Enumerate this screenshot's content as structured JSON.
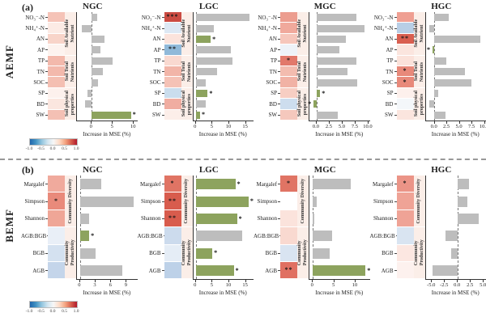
{
  "figure": {
    "panel_a_label": "(a)",
    "panel_b_label": "(b)",
    "row_a_label": "AEMF",
    "row_b_label": "BEMF",
    "x_axis_title": "Increase in MSE (%)",
    "colorbar_ticks": [
      "-1.0",
      "-0.5",
      "0.0",
      "0.5",
      "1.0"
    ],
    "colors": {
      "bar_gray": "#bdbdbd",
      "bar_green": "#8da35e",
      "group_strip_bg": "#fbeee8",
      "heat_red_max": "#b2182b",
      "heat_blue_max": "#2166ac"
    }
  },
  "chart_data": [
    {
      "type": "bar",
      "row": "AEMF",
      "site": "NGC",
      "xlabel": "Increase in MSE (%)",
      "xticks": [
        0,
        5,
        10
      ],
      "xtick_labels": [
        "0",
        "5",
        "10"
      ],
      "xlim": [
        -3.5,
        11.0
      ],
      "groups": [
        {
          "label": "Soil Available Nutrient",
          "span": 4
        },
        {
          "label": "Soil Total Nutrients",
          "span": 3
        },
        {
          "label": "Soil physical properties",
          "span": 3
        }
      ],
      "rows": [
        {
          "label": "NO₃⁻-N",
          "heat_color": "#f5c3b7",
          "heat_stars": "",
          "value": 1.4,
          "bar_color": "gray",
          "bar_stars": ""
        },
        {
          "label": "NH₄⁺-N",
          "heat_color": "#fcebe5",
          "heat_stars": "",
          "value": -2.3,
          "bar_color": "gray",
          "bar_stars": ""
        },
        {
          "label": "AN",
          "heat_color": "#f8d4c9",
          "heat_stars": "",
          "value": 3.2,
          "bar_color": "gray",
          "bar_stars": ""
        },
        {
          "label": "AP",
          "heat_color": "#fdf3ef",
          "heat_stars": "",
          "value": 2.1,
          "bar_color": "gray",
          "bar_stars": ""
        },
        {
          "label": "TP",
          "heat_color": "#f3b9ac",
          "heat_stars": "",
          "value": 5.0,
          "bar_color": "gray",
          "bar_stars": ""
        },
        {
          "label": "TN",
          "heat_color": "#f3b9ac",
          "heat_stars": "",
          "value": 2.8,
          "bar_color": "gray",
          "bar_stars": ""
        },
        {
          "label": "SOC",
          "heat_color": "#f4bfb2",
          "heat_stars": "",
          "value": 1.5,
          "bar_color": "gray",
          "bar_stars": ""
        },
        {
          "label": "SP",
          "heat_color": "#fdf1ed",
          "heat_stars": "",
          "value": -1.0,
          "bar_color": "gray",
          "bar_stars": ""
        },
        {
          "label": "BD",
          "heat_color": "#fbe6df",
          "heat_stars": "",
          "value": -1.6,
          "bar_color": "gray",
          "bar_stars": ""
        },
        {
          "label": "SW",
          "heat_color": "#f4c0b4",
          "heat_stars": "",
          "value": 9.5,
          "bar_color": "green",
          "bar_stars": "*"
        }
      ]
    },
    {
      "type": "bar",
      "row": "AEMF",
      "site": "LGC",
      "xlabel": "Increase in MSE (%)",
      "xticks": [
        0,
        5,
        10,
        15
      ],
      "xtick_labels": [
        "0",
        "5",
        "10",
        "15"
      ],
      "xlim": [
        -0.8,
        17.5
      ],
      "groups": [
        {
          "label": "Soil Available Nutrient",
          "span": 4
        },
        {
          "label": "Soil Total Nutrients",
          "span": 3
        },
        {
          "label": "Soil physical properties",
          "span": 3
        }
      ],
      "rows": [
        {
          "label": "NO₃⁻-N",
          "heat_color": "#cb4b42",
          "heat_stars": "***",
          "value": 16.3,
          "bar_color": "gray",
          "bar_stars": ""
        },
        {
          "label": "NH₄⁺-N",
          "heat_color": "#dde8f4",
          "heat_stars": "",
          "value": 5.4,
          "bar_color": "gray",
          "bar_stars": ""
        },
        {
          "label": "AN",
          "heat_color": "#fbe3dc",
          "heat_stars": "",
          "value": 4.5,
          "bar_color": "green",
          "bar_stars": "*"
        },
        {
          "label": "AP",
          "heat_color": "#90b9d9",
          "heat_stars": "**",
          "value": 10.7,
          "bar_color": "gray",
          "bar_stars": ""
        },
        {
          "label": "TP",
          "heat_color": "#f9d9d0",
          "heat_stars": "",
          "value": 11.0,
          "bar_color": "gray",
          "bar_stars": ""
        },
        {
          "label": "TN",
          "heat_color": "#f2b5a8",
          "heat_stars": "",
          "value": 6.4,
          "bar_color": "gray",
          "bar_stars": ""
        },
        {
          "label": "SOC",
          "heat_color": "#f5c2b6",
          "heat_stars": "",
          "value": 3.0,
          "bar_color": "gray",
          "bar_stars": ""
        },
        {
          "label": "SP",
          "heat_color": "#cadded",
          "heat_stars": "",
          "value": 3.6,
          "bar_color": "green",
          "bar_stars": "*"
        },
        {
          "label": "BD",
          "heat_color": "#f0ada1",
          "heat_stars": "",
          "value": 3.0,
          "bar_color": "gray",
          "bar_stars": ""
        },
        {
          "label": "SW",
          "heat_color": "#fceee9",
          "heat_stars": "",
          "value": 1.3,
          "bar_color": "green",
          "bar_stars": "*"
        }
      ]
    },
    {
      "type": "bar",
      "row": "AEMF",
      "site": "MGC",
      "xlabel": "Increase in MSE (%)",
      "xticks": [
        0,
        2.5,
        5,
        7.5,
        10
      ],
      "xtick_labels": [
        "0.0",
        "2.5",
        "5.0",
        "7.5",
        "10.0"
      ],
      "xlim": [
        -1.4,
        10.4
      ],
      "groups": [
        {
          "label": "Soil Available Nutrient",
          "span": 4
        },
        {
          "label": "Soil Total Nutrients",
          "span": 3
        },
        {
          "label": "Soil physical properties",
          "span": 3
        }
      ],
      "rows": [
        {
          "label": "NO₃⁻-N",
          "heat_color": "#ec9d8f",
          "heat_stars": "",
          "value": 7.8,
          "bar_color": "gray",
          "bar_stars": ""
        },
        {
          "label": "NH₄⁺-N",
          "heat_color": "#f0a99c",
          "heat_stars": "",
          "value": 9.4,
          "bar_color": "gray",
          "bar_stars": ""
        },
        {
          "label": "AN",
          "heat_color": "#f6c6bb",
          "heat_stars": "",
          "value": 5.7,
          "bar_color": "gray",
          "bar_stars": ""
        },
        {
          "label": "AP",
          "heat_color": "#eef2f8",
          "heat_stars": "",
          "value": 4.5,
          "bar_color": "gray",
          "bar_stars": ""
        },
        {
          "label": "TP",
          "heat_color": "#e2796b",
          "heat_stars": "*",
          "value": 7.8,
          "bar_color": "gray",
          "bar_stars": ""
        },
        {
          "label": "TN",
          "heat_color": "#f3bcaf",
          "heat_stars": "",
          "value": 6.0,
          "bar_color": "gray",
          "bar_stars": ""
        },
        {
          "label": "SOC",
          "heat_color": "#f1b2a5",
          "heat_stars": "",
          "value": 8.0,
          "bar_color": "gray",
          "bar_stars": ""
        },
        {
          "label": "SP",
          "heat_color": "#f7cec3",
          "heat_stars": "",
          "value": 0.7,
          "bar_color": "green",
          "bar_stars": "*"
        },
        {
          "label": "BD",
          "heat_color": "#cdddee",
          "heat_stars": "",
          "value": -0.6,
          "bar_color": "green",
          "bar_stars": "*"
        },
        {
          "label": "SW",
          "heat_color": "#f5c8bd",
          "heat_stars": "",
          "value": 4.2,
          "bar_color": "gray",
          "bar_stars": ""
        }
      ]
    },
    {
      "type": "bar",
      "row": "AEMF",
      "site": "HGC",
      "xlabel": "Increase in MSE (%)",
      "xticks": [
        0,
        2.5,
        5,
        7.5,
        10
      ],
      "xtick_labels": [
        "0.0",
        "2.5",
        "5.0",
        "7.5",
        "10.0"
      ],
      "xlim": [
        -1.8,
        10.4
      ],
      "groups": [
        {
          "label": "Soil Available Nutrient",
          "span": 4
        },
        {
          "label": "Soil Total Nutrients",
          "span": 3
        },
        {
          "label": "Soil physical properties",
          "span": 3
        }
      ],
      "rows": [
        {
          "label": "NO₃⁻-N",
          "heat_color": "#ef9f92",
          "heat_stars": "",
          "value": 2.8,
          "bar_color": "gray",
          "bar_stars": ""
        },
        {
          "label": "NH₄⁺-N",
          "heat_color": "#b8cee5",
          "heat_stars": "",
          "value": -1.0,
          "bar_color": "gray",
          "bar_stars": ""
        },
        {
          "label": "AN",
          "heat_color": "#d95f50",
          "heat_stars": "**",
          "value": 9.2,
          "bar_color": "gray",
          "bar_stars": ""
        },
        {
          "label": "AP",
          "heat_color": "#fbe5de",
          "heat_stars": "",
          "value": -0.4,
          "bar_color": "green",
          "bar_stars": "*"
        },
        {
          "label": "TP",
          "heat_color": "#fbe2da",
          "heat_stars": "",
          "value": 2.3,
          "bar_color": "gray",
          "bar_stars": ""
        },
        {
          "label": "TN",
          "heat_color": "#e8897a",
          "heat_stars": "*",
          "value": 6.2,
          "bar_color": "gray",
          "bar_stars": ""
        },
        {
          "label": "SOC",
          "heat_color": "#e8897a",
          "heat_stars": "*",
          "value": 7.5,
          "bar_color": "gray",
          "bar_stars": ""
        },
        {
          "label": "SP",
          "heat_color": "#fdf0ec",
          "heat_stars": "",
          "value": 0.7,
          "bar_color": "gray",
          "bar_stars": ""
        },
        {
          "label": "BD",
          "heat_color": "#f4f7fa",
          "heat_stars": "",
          "value": -1.0,
          "bar_color": "gray",
          "bar_stars": ""
        },
        {
          "label": "SW",
          "heat_color": "#fbe5de",
          "heat_stars": "",
          "value": 2.2,
          "bar_color": "gray",
          "bar_stars": ""
        }
      ]
    },
    {
      "type": "bar",
      "row": "BEMF",
      "site": "NGC",
      "xlabel": "Increase in MSE (%)",
      "xticks": [
        0,
        3,
        6,
        9
      ],
      "xtick_labels": [
        "0",
        "3",
        "6",
        "9"
      ],
      "xlim": [
        -0.6,
        11.2
      ],
      "groups": [
        {
          "label": "Community Diversity",
          "span": 3
        },
        {
          "label": "Community Productivity",
          "span": 3
        }
      ],
      "rows": [
        {
          "label": "Margalef",
          "heat_color": "#f0aa9d",
          "heat_stars": "",
          "value": 4.2,
          "bar_color": "gray",
          "bar_stars": ""
        },
        {
          "label": "Simpson",
          "heat_color": "#e98a7b",
          "heat_stars": "*",
          "value": 10.5,
          "bar_color": "gray",
          "bar_stars": ""
        },
        {
          "label": "Shannon",
          "heat_color": "#efa697",
          "heat_stars": "",
          "value": 1.8,
          "bar_color": "gray",
          "bar_stars": ""
        },
        {
          "label": "AGB:BGB",
          "heat_color": "#e9eff7",
          "heat_stars": "",
          "value": 1.8,
          "bar_color": "green",
          "bar_stars": "*"
        },
        {
          "label": "BGB",
          "heat_color": "#d4e1f0",
          "heat_stars": "",
          "value": 3.0,
          "bar_color": "gray",
          "bar_stars": ""
        },
        {
          "label": "AGB",
          "heat_color": "#c4d5ea",
          "heat_stars": "",
          "value": 8.2,
          "bar_color": "gray",
          "bar_stars": ""
        }
      ]
    },
    {
      "type": "bar",
      "row": "BEMF",
      "site": "LGC",
      "xlabel": "Increase in MSE (%)",
      "xticks": [
        0,
        5,
        10,
        15
      ],
      "xtick_labels": [
        "0",
        "5",
        "10",
        "15"
      ],
      "xlim": [
        -0.8,
        17.5
      ],
      "groups": [
        {
          "label": "Community Diversity",
          "span": 3
        },
        {
          "label": "Community Productivity",
          "span": 3
        }
      ],
      "rows": [
        {
          "label": "Margalef",
          "heat_color": "#e07464",
          "heat_stars": "*",
          "value": 12.0,
          "bar_color": "green",
          "bar_stars": "*"
        },
        {
          "label": "Simpson",
          "heat_color": "#d85c4d",
          "heat_stars": "**",
          "value": 16.0,
          "bar_color": "green",
          "bar_stars": "*"
        },
        {
          "label": "Shannon",
          "heat_color": "#d85c4d",
          "heat_stars": "**",
          "value": 12.5,
          "bar_color": "green",
          "bar_stars": "*"
        },
        {
          "label": "AGB:BGB",
          "heat_color": "#ccdbed",
          "heat_stars": "",
          "value": 14.0,
          "bar_color": "gray",
          "bar_stars": ""
        },
        {
          "label": "BGB",
          "heat_color": "#e5edf6",
          "heat_stars": "",
          "value": 5.0,
          "bar_color": "green",
          "bar_stars": "*"
        },
        {
          "label": "AGB",
          "heat_color": "#bdd1e8",
          "heat_stars": "",
          "value": 11.5,
          "bar_color": "green",
          "bar_stars": "*"
        }
      ]
    },
    {
      "type": "bar",
      "row": "BEMF",
      "site": "MGC",
      "xlabel": "Increase in MSE (%)",
      "xticks": [
        0,
        5,
        10
      ],
      "xtick_labels": [
        "0",
        "5",
        "10"
      ],
      "xlim": [
        -0.8,
        13.5
      ],
      "groups": [
        {
          "label": "Community Diversity",
          "span": 3
        },
        {
          "label": "Community Productivity",
          "span": 3
        }
      ],
      "rows": [
        {
          "label": "Margalef",
          "heat_color": "#e07464",
          "heat_stars": "*",
          "value": 9.0,
          "bar_color": "gray",
          "bar_stars": ""
        },
        {
          "label": "Simpson",
          "heat_color": "#ffffff",
          "heat_stars": "",
          "value": 1.0,
          "bar_color": "gray",
          "bar_stars": ""
        },
        {
          "label": "Shannon",
          "heat_color": "#fbe3dc",
          "heat_stars": "",
          "value": 0.3,
          "bar_color": "gray",
          "bar_stars": ""
        },
        {
          "label": "AGB:BGB",
          "heat_color": "#f9d9d0",
          "heat_stars": "",
          "value": 4.5,
          "bar_color": "gray",
          "bar_stars": ""
        },
        {
          "label": "BGB",
          "heat_color": "#d9e4f1",
          "heat_stars": "",
          "value": 4.0,
          "bar_color": "gray",
          "bar_stars": ""
        },
        {
          "label": "AGB",
          "heat_color": "#e07062",
          "heat_stars": "**",
          "value": 12.5,
          "bar_color": "green",
          "bar_stars": "*"
        }
      ]
    },
    {
      "type": "bar",
      "row": "BEMF",
      "site": "HGC",
      "xlabel": "Increase in MSE (%)",
      "xticks": [
        -5,
        -2.5,
        0,
        2.5,
        5
      ],
      "xtick_labels": [
        "-5.0",
        "-2.5",
        "0.0",
        "2.5",
        "5.0"
      ],
      "xlim": [
        -6.2,
        5.6
      ],
      "groups": [
        {
          "label": "Community Diversity",
          "span": 3
        },
        {
          "label": "Community Productivity",
          "span": 3
        }
      ],
      "rows": [
        {
          "label": "Margalef",
          "heat_color": "#eb9487",
          "heat_stars": "*",
          "value": 2.2,
          "bar_color": "gray",
          "bar_stars": ""
        },
        {
          "label": "Simpson",
          "heat_color": "#efa396",
          "heat_stars": "",
          "value": 2.0,
          "bar_color": "gray",
          "bar_stars": ""
        },
        {
          "label": "Shannon",
          "heat_color": "#efa396",
          "heat_stars": "",
          "value": 4.2,
          "bar_color": "gray",
          "bar_stars": ""
        },
        {
          "label": "AGB:BGB",
          "heat_color": "#d9e4f1",
          "heat_stars": "",
          "value": -2.3,
          "bar_color": "gray",
          "bar_stars": ""
        },
        {
          "label": "BGB",
          "heat_color": "#fce7e1",
          "heat_stars": "",
          "value": -1.2,
          "bar_color": "gray",
          "bar_stars": ""
        },
        {
          "label": "AGB",
          "heat_color": "#fdf1ee",
          "heat_stars": "",
          "value": -4.8,
          "bar_color": "gray",
          "bar_stars": ""
        }
      ]
    }
  ]
}
